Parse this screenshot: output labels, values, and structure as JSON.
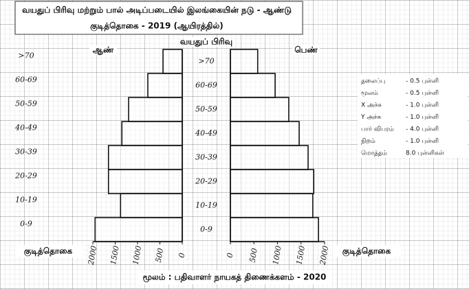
{
  "chart_data": {
    "type": "pyramid",
    "title": "வயதுப் பிரிவு மற்றும் பால் அடிப்படையில் இலங்கையின் நடு - ஆண்டு",
    "subtitle": "குடித்தொகை - 2019 (ஆயிரத்தில்)",
    "category_label": "வயதுப் பிரிவு",
    "x_label": "குடித்தொகை",
    "source": "மூலம் : பதிவாளர் நாயகத் திணைக்களம் - 2020",
    "categories": [
      "0-9",
      "10-19",
      "20-29",
      "30-39",
      "40-49",
      "50-59",
      "60-69",
      ">70"
    ],
    "series": [
      {
        "name": "ஆண்",
        "color": "#111111",
        "values": [
          1950,
          1380,
          1650,
          1650,
          1350,
          1200,
          770,
          430
        ]
      },
      {
        "name": "பெண்",
        "color": "#111111",
        "values": [
          1870,
          1750,
          1770,
          1650,
          1460,
          1240,
          950,
          580
        ]
      }
    ],
    "xlim": [
      0,
      2000
    ],
    "xticks": [
      0,
      500,
      1000,
      1500,
      2000
    ]
  },
  "marking_scheme": [
    {
      "item": "தலைப்பு",
      "points": "- 0.5 புள்ளி"
    },
    {
      "item": "மூலம்",
      "points": "- 0.5 புள்ளி"
    },
    {
      "item": "X அச்சு",
      "points": "- 1.0 புள்ளி"
    },
    {
      "item": "Y அச்சு",
      "points": "- 1.0 புள்ளி"
    },
    {
      "item": "பார் விபரம்",
      "points": "- 4.0 புள்ளி"
    },
    {
      "item": "நிறம்",
      "points": "- 1.0 புள்ளி"
    },
    {
      "item": "மொத்தம்",
      "points": "8.0 புள்ளிகள்"
    }
  ]
}
